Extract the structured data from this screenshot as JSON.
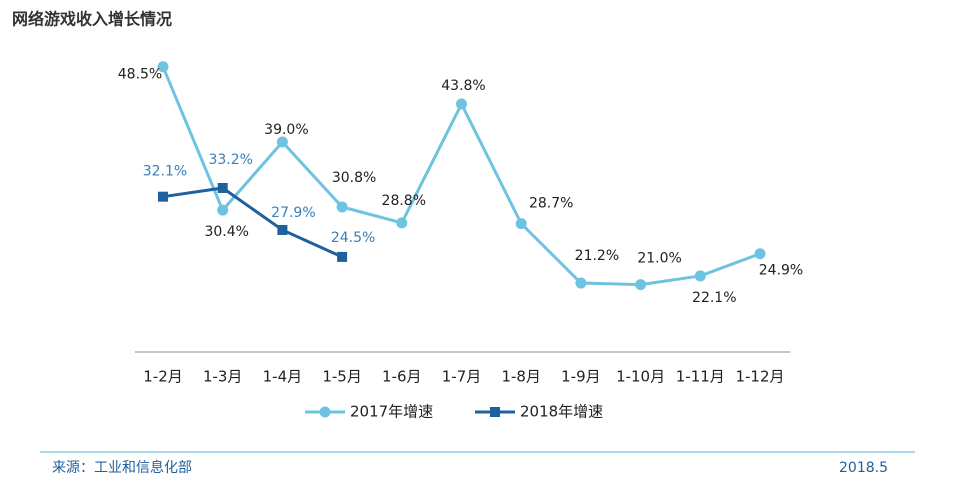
{
  "chart_data": {
    "type": "line",
    "title": "网络游戏收入增长情况",
    "categories": [
      "1-2月",
      "1-3月",
      "1-4月",
      "1-5月",
      "1-6月",
      "1-7月",
      "1-8月",
      "1-9月",
      "1-10月",
      "1-11月",
      "1-12月"
    ],
    "series": [
      {
        "name": "2017年增速",
        "color": "#6ec3e0",
        "values": [
          48.5,
          30.4,
          39.0,
          30.8,
          28.8,
          43.8,
          28.7,
          21.2,
          21.0,
          22.1,
          24.9
        ],
        "value_labels": [
          "48.5%",
          "30.4%",
          "39.0%",
          "30.8%",
          "28.8%",
          "43.8%",
          "28.7%",
          "21.2%",
          "21.0%",
          "22.1%",
          "24.9%"
        ]
      },
      {
        "name": "2018年增速",
        "color": "#1f609e",
        "values": [
          32.1,
          33.2,
          27.9,
          24.5,
          null,
          null,
          null,
          null,
          null,
          null,
          null
        ],
        "value_labels": [
          "32.1%",
          "33.2%",
          "27.9%",
          "24.5%",
          null,
          null,
          null,
          null,
          null,
          null,
          null
        ]
      }
    ],
    "ylim": [
      12.5,
      52
    ],
    "source": "来源：工业和信息化部",
    "date": "2018.5"
  }
}
